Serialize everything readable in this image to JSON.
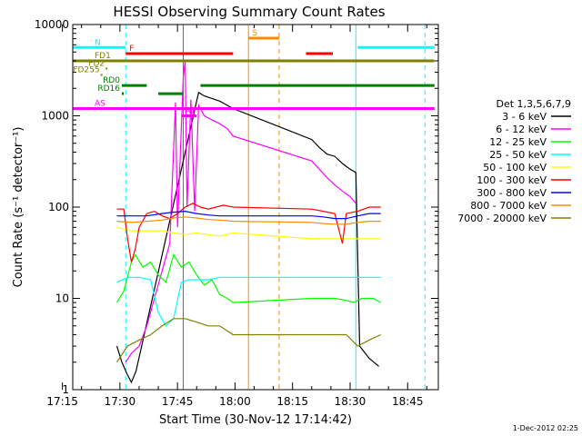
{
  "chart_data": {
    "type": "line",
    "title": "HESSI Observing Summary Count Rates",
    "xlabel": "Start Time (30-Nov-12 17:14:42)",
    "ylabel": "Count Rate (s⁻¹ detector⁻¹)",
    "y_scale": "log",
    "ylim": [
      1,
      10000
    ],
    "x_range_minutes": [
      17.7,
      113.0
    ],
    "x_ticks": [
      {
        "t": 15,
        "label": "17:15"
      },
      {
        "t": 30,
        "label": "17:30"
      },
      {
        "t": 45,
        "label": "17:45"
      },
      {
        "t": 60,
        "label": "18:00"
      },
      {
        "t": 75,
        "label": "18:15"
      },
      {
        "t": 90,
        "label": "18:30"
      },
      {
        "t": 105,
        "label": "18:45"
      }
    ],
    "y_ticks": [
      {
        "v": 1,
        "label": "1"
      },
      {
        "v": 10,
        "label": "10"
      },
      {
        "v": 100,
        "label": "100"
      },
      {
        "v": 1000,
        "label": "1000"
      },
      {
        "v": 10000,
        "label": "10000"
      }
    ],
    "legend_title": "Det 1,3,5,6,7,9",
    "legend_placement": "right",
    "series": [
      {
        "name": "3 - 6 keV",
        "color": "#000000",
        "points": [
          [
            29.2,
            3
          ],
          [
            30.5,
            2
          ],
          [
            31.8,
            1.5
          ],
          [
            33,
            1.2
          ],
          [
            34.2,
            1.6
          ],
          [
            50.5,
            1800
          ],
          [
            52,
            1650
          ],
          [
            54,
            1550
          ],
          [
            56,
            1450
          ],
          [
            58,
            1300
          ],
          [
            59.5,
            1200
          ],
          [
            80,
            550
          ],
          [
            82,
            450
          ],
          [
            84,
            380
          ],
          [
            86,
            360
          ],
          [
            88,
            300
          ],
          [
            90,
            260
          ],
          [
            91.5,
            240
          ],
          [
            92.5,
            3
          ],
          [
            95,
            2.2
          ],
          [
            97.5,
            1.8
          ]
        ]
      },
      {
        "name": "6 - 12 keV",
        "color": "#ff00ff",
        "points": [
          [
            31.5,
            2
          ],
          [
            33,
            2.5
          ],
          [
            35,
            3
          ],
          [
            37,
            5
          ],
          [
            39,
            10
          ],
          [
            41,
            20
          ],
          [
            43,
            40
          ],
          [
            44.5,
            1400
          ],
          [
            45,
            60
          ],
          [
            46.5,
            2600
          ],
          [
            47,
            4000
          ],
          [
            47.5,
            100
          ],
          [
            48.5,
            1500
          ],
          [
            49.5,
            90
          ],
          [
            50.5,
            1300
          ],
          [
            52,
            1000
          ],
          [
            54,
            900
          ],
          [
            56,
            820
          ],
          [
            58,
            720
          ],
          [
            59.5,
            600
          ],
          [
            80,
            320
          ],
          [
            82,
            260
          ],
          [
            84,
            210
          ],
          [
            86,
            175
          ],
          [
            88,
            150
          ],
          [
            90,
            130
          ],
          [
            91.5,
            110
          ]
        ]
      },
      {
        "name": "12 - 25 keV",
        "color": "#00ff00",
        "points": [
          [
            29.2,
            9
          ],
          [
            31,
            12
          ],
          [
            33,
            25
          ],
          [
            34,
            30
          ],
          [
            36,
            22
          ],
          [
            38,
            25
          ],
          [
            40,
            18
          ],
          [
            42,
            15
          ],
          [
            44,
            30
          ],
          [
            46,
            22
          ],
          [
            48,
            25
          ],
          [
            50,
            18
          ],
          [
            52,
            14
          ],
          [
            54,
            16
          ],
          [
            56,
            11
          ],
          [
            58,
            10
          ],
          [
            59.5,
            9
          ],
          [
            80,
            10
          ],
          [
            83,
            10
          ],
          [
            86,
            10
          ],
          [
            89,
            9.5
          ],
          [
            91,
            9
          ],
          [
            93,
            10
          ],
          [
            96,
            10
          ],
          [
            98,
            9
          ]
        ]
      },
      {
        "name": "25 - 50 keV",
        "color": "#00ffff",
        "points": [
          [
            29.2,
            15
          ],
          [
            32,
            17
          ],
          [
            35,
            17
          ],
          [
            38,
            16
          ],
          [
            40,
            7
          ],
          [
            42,
            5
          ],
          [
            44,
            6
          ],
          [
            46,
            15
          ],
          [
            48,
            16
          ],
          [
            50,
            16
          ],
          [
            53,
            16
          ],
          [
            56,
            17
          ],
          [
            59.5,
            17
          ],
          [
            80,
            17
          ],
          [
            84,
            17
          ],
          [
            88,
            17
          ],
          [
            92,
            17
          ],
          [
            95,
            17
          ],
          [
            98,
            17
          ]
        ]
      },
      {
        "name": "50 - 100 keV",
        "color": "#ffff00",
        "points": [
          [
            29.2,
            60
          ],
          [
            33,
            55
          ],
          [
            37,
            55
          ],
          [
            41,
            55
          ],
          [
            44,
            52
          ],
          [
            47,
            50
          ],
          [
            50,
            52
          ],
          [
            53,
            50
          ],
          [
            56,
            48
          ],
          [
            59.5,
            52
          ],
          [
            80,
            45
          ],
          [
            84,
            45
          ],
          [
            88,
            45
          ],
          [
            92,
            45
          ],
          [
            95,
            45
          ],
          [
            98,
            45
          ]
        ]
      },
      {
        "name": "100 - 300 keV",
        "color": "#ff0000",
        "points": [
          [
            29.2,
            95
          ],
          [
            31,
            95
          ],
          [
            32,
            45
          ],
          [
            33,
            25
          ],
          [
            34,
            35
          ],
          [
            35,
            60
          ],
          [
            37,
            85
          ],
          [
            39,
            90
          ],
          [
            41,
            80
          ],
          [
            43,
            75
          ],
          [
            45,
            85
          ],
          [
            47,
            100
          ],
          [
            49,
            110
          ],
          [
            51,
            100
          ],
          [
            53,
            95
          ],
          [
            55,
            100
          ],
          [
            57,
            105
          ],
          [
            59.5,
            100
          ],
          [
            80,
            95
          ],
          [
            83,
            90
          ],
          [
            86,
            85
          ],
          [
            88,
            40
          ],
          [
            89,
            85
          ],
          [
            92,
            90
          ],
          [
            95,
            100
          ],
          [
            98,
            100
          ]
        ]
      },
      {
        "name": "300 - 800 keV",
        "color": "#0000ff",
        "points": [
          [
            29.2,
            80
          ],
          [
            33,
            80
          ],
          [
            37,
            80
          ],
          [
            41,
            85
          ],
          [
            44,
            88
          ],
          [
            47,
            90
          ],
          [
            50,
            85
          ],
          [
            53,
            82
          ],
          [
            56,
            80
          ],
          [
            59.5,
            80
          ],
          [
            80,
            80
          ],
          [
            83,
            78
          ],
          [
            86,
            75
          ],
          [
            89,
            75
          ],
          [
            92,
            80
          ],
          [
            95,
            85
          ],
          [
            98,
            85
          ]
        ]
      },
      {
        "name": "800 - 7000 keV",
        "color": "#ff8c00",
        "points": [
          [
            29.2,
            70
          ],
          [
            33,
            68
          ],
          [
            37,
            70
          ],
          [
            41,
            72
          ],
          [
            44,
            76
          ],
          [
            47,
            78
          ],
          [
            50,
            76
          ],
          [
            53,
            73
          ],
          [
            56,
            72
          ],
          [
            59.5,
            70
          ],
          [
            80,
            68
          ],
          [
            83,
            66
          ],
          [
            86,
            65
          ],
          [
            89,
            65
          ],
          [
            92,
            68
          ],
          [
            95,
            70
          ],
          [
            98,
            70
          ]
        ]
      },
      {
        "name": "7000 - 20000 keV",
        "color": "#808000",
        "points": [
          [
            29.2,
            2
          ],
          [
            32,
            3
          ],
          [
            35,
            3.5
          ],
          [
            38,
            4
          ],
          [
            41,
            5
          ],
          [
            44,
            6
          ],
          [
            47,
            6
          ],
          [
            50,
            5.5
          ],
          [
            53,
            5
          ],
          [
            56,
            5
          ],
          [
            59.5,
            4
          ],
          [
            80,
            4
          ],
          [
            83,
            4
          ],
          [
            86,
            4
          ],
          [
            89,
            4
          ],
          [
            92,
            3
          ],
          [
            95,
            3.5
          ],
          [
            98,
            4
          ]
        ]
      }
    ],
    "flags": [
      {
        "label": "N",
        "color": "#00ffff",
        "y": 5600,
        "segments": [
          [
            17.7,
            31.5
          ],
          [
            92,
            112
          ]
        ]
      },
      {
        "label": "F",
        "color": "#ff0000",
        "y": 4800,
        "segments": [
          [
            31.5,
            59.5
          ],
          [
            78.5,
            85.5
          ]
        ]
      },
      {
        "label": "S",
        "color": "#ff8c00",
        "y": 7100,
        "segments": [
          [
            63.5,
            71.5
          ]
        ]
      },
      {
        "label": "FD1",
        "color": "#808000",
        "y": 4000,
        "segments": [
          [
            17.7,
            112
          ]
        ]
      },
      {
        "label": "FD2",
        "color": "#808000",
        "y": 3300,
        "segments": [
          [
            26.5,
            26.5
          ]
        ]
      },
      {
        "label": "FD255",
        "color": "#808000",
        "y": 2800,
        "segments": [
          [
            25.2,
            25.2
          ]
        ]
      },
      {
        "label": "RD0",
        "color": "#008000",
        "y": 2150,
        "segments": [
          [
            30.5,
            37
          ],
          [
            51,
            112
          ]
        ]
      },
      {
        "label": "RD16",
        "color": "#008000",
        "y": 1750,
        "segments": [
          [
            30.5,
            31
          ],
          [
            40,
            46.5
          ]
        ]
      },
      {
        "label": "AS",
        "color": "#ff00ff",
        "y": 1200,
        "segments": [
          [
            17.7,
            112
          ]
        ]
      },
      {
        "label": "A1",
        "color": "#ff00ff",
        "y": 1000,
        "segments": [
          [
            46,
            50
          ]
        ]
      }
    ],
    "vlines": [
      {
        "t": 17.7,
        "color": "#00ffff",
        "dash": "solid"
      },
      {
        "t": 31.5,
        "color": "#00ffff",
        "dash": "dashed"
      },
      {
        "t": 91.5,
        "color": "#00ffff",
        "dash": "solid"
      },
      {
        "t": 109.5,
        "color": "#00ffff",
        "dash": "dashed"
      },
      {
        "t": 46.5,
        "color": "#ff00ff",
        "dash": "solid"
      },
      {
        "t": 63.5,
        "color": "#ff8c00",
        "dash": "solid"
      },
      {
        "t": 71.5,
        "color": "#ff8c00",
        "dash": "dashed"
      }
    ],
    "footer_date": "1-Dec-2012 02:25"
  }
}
